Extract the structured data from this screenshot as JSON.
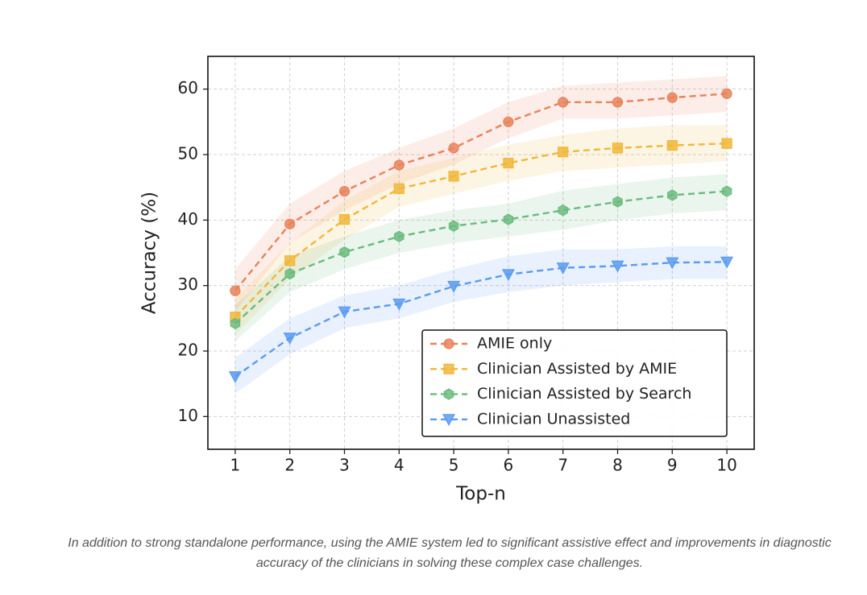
{
  "chart_data": {
    "type": "line",
    "x": [
      1,
      2,
      3,
      4,
      5,
      6,
      7,
      8,
      9,
      10
    ],
    "xlabel": "Top-n",
    "ylabel": "Accuracy (%)",
    "xlim": [
      0.5,
      10.5
    ],
    "ylim": [
      5,
      65
    ],
    "xticks": [
      1,
      2,
      3,
      4,
      5,
      6,
      7,
      8,
      9,
      10
    ],
    "yticks": [
      10,
      20,
      30,
      40,
      50,
      60
    ],
    "grid": true,
    "legend": "lower right",
    "series": [
      {
        "name": "AMIE only",
        "color": "#e8825a",
        "marker": "circle",
        "values": [
          29.2,
          39.4,
          44.4,
          48.4,
          51,
          55,
          58,
          58,
          58.7,
          59.3
        ],
        "ci_lower": [
          26,
          36.5,
          41.5,
          45.5,
          48.5,
          52.5,
          55.5,
          55.5,
          56,
          56.5
        ],
        "ci_upper": [
          32.5,
          42.5,
          47.5,
          51,
          54,
          58,
          60.5,
          61,
          61.5,
          62
        ]
      },
      {
        "name": "Clinician Assisted by AMIE",
        "color": "#f0b73a",
        "marker": "square",
        "values": [
          25.2,
          33.8,
          40.1,
          44.8,
          46.7,
          48.7,
          50.4,
          51,
          51.4,
          51.7
        ],
        "ci_lower": [
          22.5,
          31,
          37,
          42,
          44,
          46,
          47.5,
          48,
          48.5,
          49
        ],
        "ci_upper": [
          28,
          36.5,
          43,
          47.5,
          49.5,
          51.5,
          53,
          54,
          54.5,
          54.5
        ]
      },
      {
        "name": "Clinician Assisted by Search",
        "color": "#6bbb7e",
        "marker": "hexagon",
        "values": [
          24.2,
          31.8,
          35.1,
          37.5,
          39.1,
          40.1,
          41.5,
          42.8,
          43.8,
          44.4
        ],
        "ci_lower": [
          21.5,
          29,
          32.5,
          35,
          36.5,
          37.5,
          38.5,
          40,
          41,
          41.5
        ],
        "ci_upper": [
          27,
          34.5,
          37.5,
          40,
          41.5,
          42.5,
          44.5,
          45.5,
          46.5,
          47
        ]
      },
      {
        "name": "Clinician Unassisted",
        "color": "#5b9bef",
        "marker": "triangle-down",
        "values": [
          16.1,
          22,
          26,
          27.2,
          29.9,
          31.7,
          32.7,
          33,
          33.5,
          33.6
        ],
        "ci_lower": [
          13.5,
          19.5,
          23.5,
          25,
          27.5,
          29,
          30,
          30.5,
          31,
          31
        ],
        "ci_upper": [
          19,
          25,
          28.5,
          30,
          32.5,
          34.5,
          35.5,
          35.5,
          36,
          36
        ]
      }
    ]
  },
  "caption": "In addition to strong standalone performance, using the AMIE system led to significant assistive effect and improvements in diagnostic accuracy of the clinicians in solving these complex case challenges."
}
